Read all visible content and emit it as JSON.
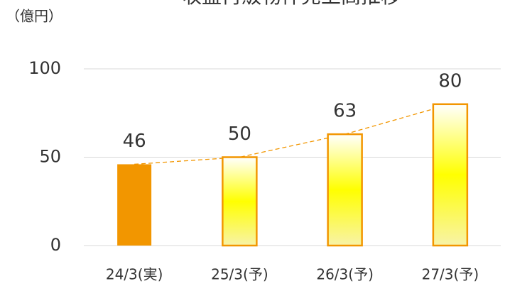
{
  "chart_data": {
    "type": "bar",
    "title": "収益再販物件売上高推移",
    "unit_label": "（億円）",
    "categories": [
      "24/3(実)",
      "25/3(予)",
      "26/3(予)",
      "27/3(予)"
    ],
    "values": [
      46,
      50,
      63,
      80
    ],
    "color": "#f29600",
    "ylim": [
      0,
      100
    ],
    "yticks": [
      0,
      50,
      100
    ],
    "grid": true
  }
}
